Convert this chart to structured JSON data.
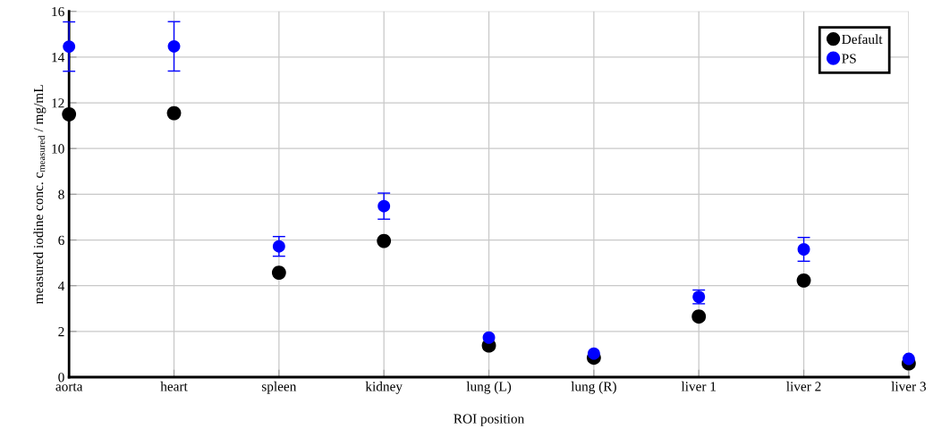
{
  "chart_data": {
    "type": "scatter",
    "xlabel": "ROI position",
    "ylabel": "measured iodine conc. c$_{measured}$ / mg/mL",
    "categories": [
      "aorta",
      "heart",
      "spleen",
      "kidney",
      "lung (L)",
      "lung (R)",
      "liver 1",
      "liver 2",
      "liver 3"
    ],
    "series": [
      {
        "name": "Default",
        "color": "#000000",
        "values": [
          11.5,
          11.55,
          4.57,
          5.96,
          1.38,
          0.85,
          2.65,
          4.23,
          0.6
        ]
      },
      {
        "name": "PS",
        "color": "#0000ff",
        "values": [
          14.46,
          14.47,
          5.72,
          7.48,
          1.73,
          1.03,
          3.51,
          5.59,
          0.8
        ],
        "errors": [
          1.08,
          1.08,
          0.43,
          0.57,
          null,
          null,
          0.3,
          0.52,
          null
        ]
      }
    ],
    "ylim": [
      0,
      16
    ],
    "yticks": [
      0,
      2,
      4,
      6,
      8,
      10,
      12,
      14,
      16
    ],
    "grid": true,
    "legend": "top right",
    "marker": "circle"
  }
}
